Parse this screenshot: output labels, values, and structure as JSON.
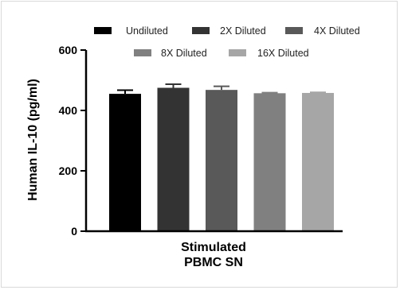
{
  "chart_data": {
    "type": "bar",
    "ylabel": "Human IL-10 (pg/ml)",
    "xlabel_lines": [
      "Stimulated",
      "PBMC SN"
    ],
    "ylim": [
      0,
      600
    ],
    "yticks": [
      0,
      200,
      400,
      600
    ],
    "grid": false,
    "legend_placement": "top",
    "series": [
      {
        "name": "Undiluted",
        "value": 455,
        "error": 12,
        "color": "#000000"
      },
      {
        "name": "2X Diluted",
        "value": 475,
        "error": 12,
        "color": "#333333"
      },
      {
        "name": "4X Diluted",
        "value": 468,
        "error": 12,
        "color": "#595959"
      },
      {
        "name": "8X Diluted",
        "value": 457,
        "error": 2,
        "color": "#808080"
      },
      {
        "name": "16X Diluted",
        "value": 458,
        "error": 2,
        "color": "#a6a6a6"
      }
    ]
  }
}
